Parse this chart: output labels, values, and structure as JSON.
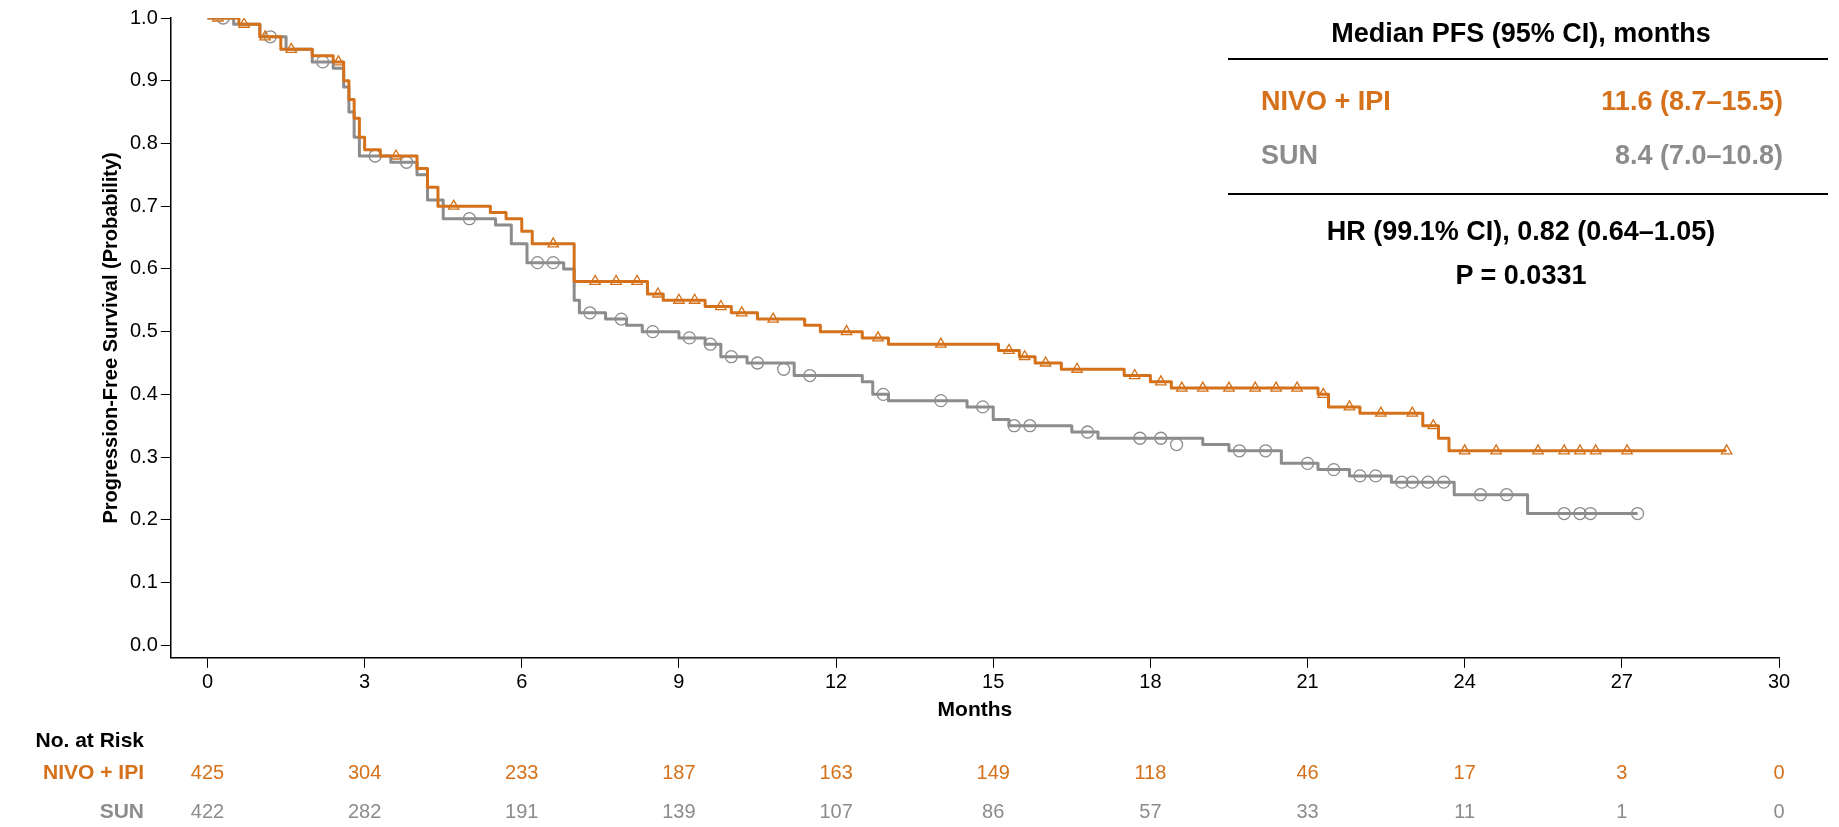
{
  "chart_data": {
    "type": "step",
    "xlabel": "Months",
    "ylabel": "Progression-Free Survival (Probability)",
    "xlim": [
      -0.7,
      30
    ],
    "ylim": [
      -0.02,
      1.0
    ],
    "xticks": [
      0,
      3,
      6,
      9,
      12,
      15,
      18,
      21,
      24,
      27,
      30
    ],
    "yticks": [
      {
        "value": 0,
        "label": "0.0"
      },
      {
        "value": 0.1,
        "label": "0.1"
      },
      {
        "value": 0.2,
        "label": "0.2"
      },
      {
        "value": 0.3,
        "label": "0.3"
      },
      {
        "value": 0.4,
        "label": "0.4"
      },
      {
        "value": 0.5,
        "label": "0.5"
      },
      {
        "value": 0.6,
        "label": "0.6"
      },
      {
        "value": 0.7,
        "label": "0.7"
      },
      {
        "value": 0.8,
        "label": "0.8"
      },
      {
        "value": 0.9,
        "label": "0.9"
      },
      {
        "value": 1.0,
        "label": "1.0"
      }
    ],
    "grid": false,
    "legend": false,
    "line_style": "solid",
    "series": [
      {
        "type": "step",
        "color": "#d4711a",
        "marker": "none",
        "x": [
          0,
          0.6,
          1.0,
          1.4,
          2.0,
          2.4,
          2.6,
          2.7,
          2.8,
          2.9,
          3.0,
          3.3,
          4.0,
          4.2,
          4.4,
          5.4,
          5.7,
          6.0,
          6.2,
          7.0,
          8.4,
          8.7,
          9.5,
          10.0,
          10.5,
          11.4,
          11.7,
          12.5,
          13.0,
          15.1,
          15.5,
          15.8,
          16.3,
          17.5,
          18.0,
          18.4,
          21.2,
          21.4,
          22.0,
          23.2,
          23.5,
          23.7,
          29.0
        ],
        "values": [
          1.0,
          0.99,
          0.97,
          0.95,
          0.94,
          0.93,
          0.9,
          0.87,
          0.84,
          0.81,
          0.79,
          0.78,
          0.76,
          0.73,
          0.7,
          0.69,
          0.68,
          0.66,
          0.64,
          0.58,
          0.56,
          0.55,
          0.54,
          0.53,
          0.52,
          0.51,
          0.5,
          0.49,
          0.48,
          0.47,
          0.46,
          0.45,
          0.44,
          0.43,
          0.42,
          0.41,
          0.4,
          0.38,
          0.37,
          0.35,
          0.33,
          0.31,
          0.31
        ]
      },
      {
        "type": "step",
        "color": "#8c8c8c",
        "marker": "none",
        "x": [
          0,
          0.5,
          1.0,
          1.5,
          2.0,
          2.4,
          2.6,
          2.7,
          2.8,
          2.9,
          3.5,
          4.0,
          4.2,
          4.5,
          5.5,
          5.8,
          6.1,
          6.8,
          7.0,
          7.1,
          7.6,
          8.0,
          8.3,
          9.0,
          9.5,
          9.8,
          10.3,
          11.2,
          12.5,
          12.7,
          13.0,
          14.5,
          15.0,
          15.3,
          16.5,
          17.0,
          19.0,
          19.5,
          20.5,
          21.2,
          21.8,
          22.6,
          23.8,
          25.2,
          27.3
        ],
        "values": [
          1.0,
          0.99,
          0.97,
          0.95,
          0.93,
          0.92,
          0.89,
          0.85,
          0.81,
          0.78,
          0.77,
          0.75,
          0.71,
          0.68,
          0.67,
          0.64,
          0.61,
          0.6,
          0.55,
          0.53,
          0.52,
          0.51,
          0.5,
          0.49,
          0.48,
          0.46,
          0.45,
          0.43,
          0.42,
          0.4,
          0.39,
          0.38,
          0.36,
          0.35,
          0.34,
          0.33,
          0.32,
          0.31,
          0.29,
          0.28,
          0.27,
          0.26,
          0.24,
          0.21,
          0.21
        ]
      },
      {
        "type": "scatter",
        "color": "#d4711a",
        "marker": "triangle",
        "x": [
          0.2,
          0.7,
          1.1,
          1.6,
          2.5,
          3.6,
          4.7,
          6.6,
          7.4,
          7.8,
          8.2,
          8.6,
          9.0,
          9.3,
          9.8,
          10.2,
          10.8,
          12.2,
          12.8,
          14.0,
          15.3,
          15.6,
          16.0,
          16.6,
          17.7,
          18.2,
          18.6,
          19.0,
          19.5,
          20.0,
          20.4,
          20.8,
          21.3,
          21.8,
          22.4,
          23.0,
          23.4,
          24.0,
          24.6,
          25.4,
          25.9,
          26.2,
          26.5,
          27.1,
          29.0
        ],
        "values": [
          1.0,
          0.99,
          0.97,
          0.95,
          0.93,
          0.78,
          0.7,
          0.64,
          0.58,
          0.58,
          0.58,
          0.56,
          0.55,
          0.55,
          0.54,
          0.53,
          0.52,
          0.5,
          0.49,
          0.48,
          0.47,
          0.46,
          0.45,
          0.44,
          0.43,
          0.42,
          0.41,
          0.41,
          0.41,
          0.41,
          0.41,
          0.41,
          0.4,
          0.38,
          0.37,
          0.37,
          0.35,
          0.31,
          0.31,
          0.31,
          0.31,
          0.31,
          0.31,
          0.31,
          0.31
        ]
      },
      {
        "type": "scatter",
        "color": "#8c8c8c",
        "marker": "circle",
        "x": [
          0.3,
          1.2,
          2.2,
          3.2,
          3.8,
          5.0,
          6.3,
          6.6,
          7.3,
          7.9,
          8.5,
          9.2,
          9.6,
          10.0,
          10.5,
          11.0,
          11.5,
          12.9,
          14.0,
          14.8,
          15.4,
          15.7,
          16.8,
          17.8,
          18.2,
          18.5,
          19.7,
          20.2,
          21.0,
          21.5,
          22.0,
          22.3,
          22.8,
          23.0,
          23.3,
          23.6,
          24.3,
          24.8,
          25.9,
          26.2,
          26.4,
          27.3
        ],
        "values": [
          1.0,
          0.97,
          0.93,
          0.78,
          0.77,
          0.68,
          0.61,
          0.61,
          0.53,
          0.52,
          0.5,
          0.49,
          0.48,
          0.46,
          0.45,
          0.44,
          0.43,
          0.4,
          0.39,
          0.38,
          0.35,
          0.35,
          0.34,
          0.33,
          0.33,
          0.32,
          0.31,
          0.31,
          0.29,
          0.28,
          0.27,
          0.27,
          0.26,
          0.26,
          0.26,
          0.26,
          0.24,
          0.24,
          0.21,
          0.21,
          0.21,
          0.21
        ]
      }
    ],
    "annotations": [
      "Median PFS (95% CI), months",
      "NIVO + IPI",
      "11.6 (8.7–15.5)",
      "SUN",
      "8.4 (7.0–10.8)",
      "HR (99.1% CI), 0.82 (0.64–1.05)",
      "P = 0.0331",
      "No. at Risk",
      "NIVO + IPI",
      "425",
      "304",
      "233",
      "187",
      "163",
      "149",
      "118",
      "46",
      "17",
      "3",
      "0",
      "SUN",
      "422",
      "282",
      "191",
      "139",
      "107",
      "86",
      "57",
      "33",
      "11",
      "1",
      "0"
    ]
  }
}
